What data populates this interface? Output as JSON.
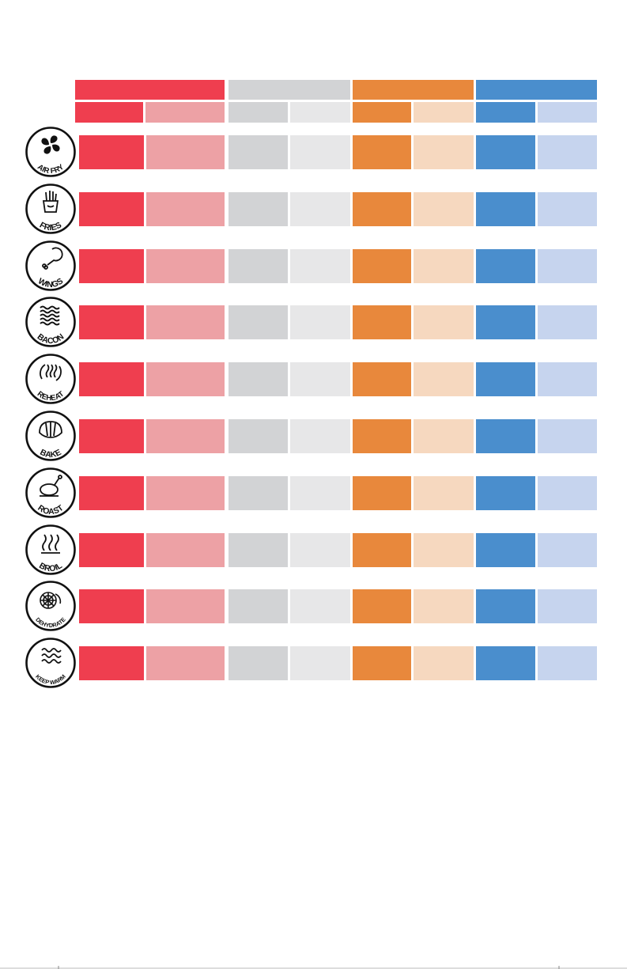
{
  "colors": {
    "red": "#ef3e4f",
    "red_light": "#eda1a5",
    "gray": "#d2d3d5",
    "gray_light": "#e7e7e8",
    "orange": "#e8883c",
    "orange_light": "#f6d8bf",
    "blue": "#4a8ecd",
    "blue_light": "#c6d4ee"
  },
  "column_groups": [
    {
      "color": "red"
    },
    {
      "color": "gray"
    },
    {
      "color": "orange"
    },
    {
      "color": "blue"
    }
  ],
  "functions": [
    {
      "label": "AIR FRY",
      "icon": "fan-icon"
    },
    {
      "label": "FRIES",
      "icon": "fries-icon"
    },
    {
      "label": "WINGS",
      "icon": "drumstick-icon"
    },
    {
      "label": "BACON",
      "icon": "bacon-icon"
    },
    {
      "label": "REHEAT",
      "icon": "reheat-icon"
    },
    {
      "label": "BAKE",
      "icon": "croissant-icon"
    },
    {
      "label": "ROAST",
      "icon": "roast-chicken-icon"
    },
    {
      "label": "BROIL",
      "icon": "heat-waves-icon"
    },
    {
      "label": "DEHYDRATE",
      "icon": "dried-fruit-icon"
    },
    {
      "label": "KEEP WARM",
      "icon": "warm-waves-icon"
    }
  ]
}
